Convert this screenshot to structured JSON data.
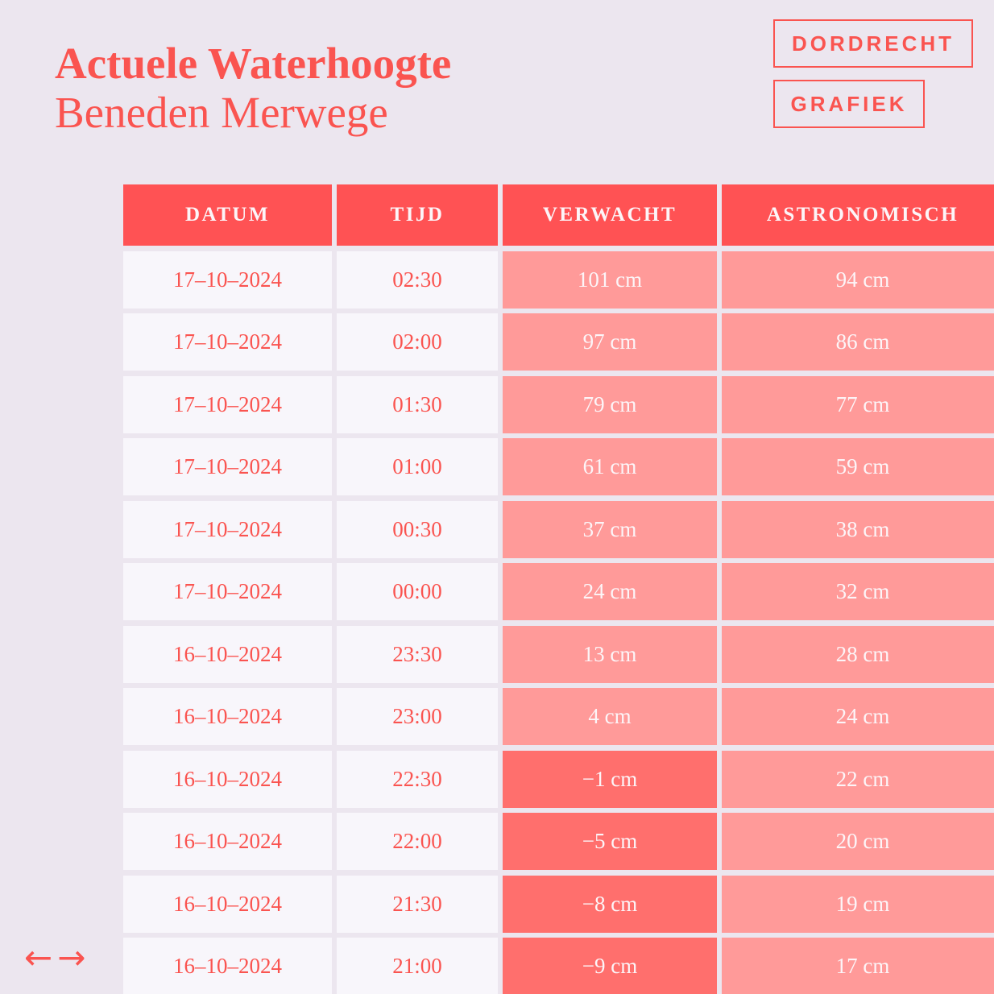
{
  "page": {
    "title_line1": "Actuele Waterhoogte",
    "title_line2": "Beneden Merwege"
  },
  "buttons": {
    "station": "DORDRECHT",
    "graph": "GRAFIEK"
  },
  "pagination": {
    "prev": "←",
    "next": "→"
  },
  "colors": {
    "accent": "#fa5450",
    "header_bg": "#ff5254",
    "cell_pink": "#ff9a99",
    "cell_negative": "#ff6f6d",
    "cell_light": "#f8f6fb",
    "background": "#ece6ef",
    "text_light": "#fcf5f8"
  },
  "table": {
    "columns": [
      "DATUM",
      "TIJD",
      "VERWACHT",
      "ASTRONOMISCH"
    ],
    "rows": [
      {
        "datum": "17–10–2024",
        "tijd": "02:30",
        "verwacht": "101 cm",
        "astronomisch": "94 cm"
      },
      {
        "datum": "17–10–2024",
        "tijd": "02:00",
        "verwacht": "97 cm",
        "astronomisch": "86 cm"
      },
      {
        "datum": "17–10–2024",
        "tijd": "01:30",
        "verwacht": "79 cm",
        "astronomisch": "77 cm"
      },
      {
        "datum": "17–10–2024",
        "tijd": "01:00",
        "verwacht": "61 cm",
        "astronomisch": "59 cm"
      },
      {
        "datum": "17–10–2024",
        "tijd": "00:30",
        "verwacht": "37 cm",
        "astronomisch": "38 cm"
      },
      {
        "datum": "17–10–2024",
        "tijd": "00:00",
        "verwacht": "24 cm",
        "astronomisch": "32 cm"
      },
      {
        "datum": "16–10–2024",
        "tijd": "23:30",
        "verwacht": "13 cm",
        "astronomisch": "28 cm"
      },
      {
        "datum": "16–10–2024",
        "tijd": "23:00",
        "verwacht": "4 cm",
        "astronomisch": "24 cm"
      },
      {
        "datum": "16–10–2024",
        "tijd": "22:30",
        "verwacht": "−1 cm",
        "astronomisch": "22 cm"
      },
      {
        "datum": "16–10–2024",
        "tijd": "22:00",
        "verwacht": "−5 cm",
        "astronomisch": "20 cm"
      },
      {
        "datum": "16–10–2024",
        "tijd": "21:30",
        "verwacht": "−8 cm",
        "astronomisch": "19 cm"
      },
      {
        "datum": "16–10–2024",
        "tijd": "21:00",
        "verwacht": "−9 cm",
        "astronomisch": "17 cm"
      }
    ]
  }
}
